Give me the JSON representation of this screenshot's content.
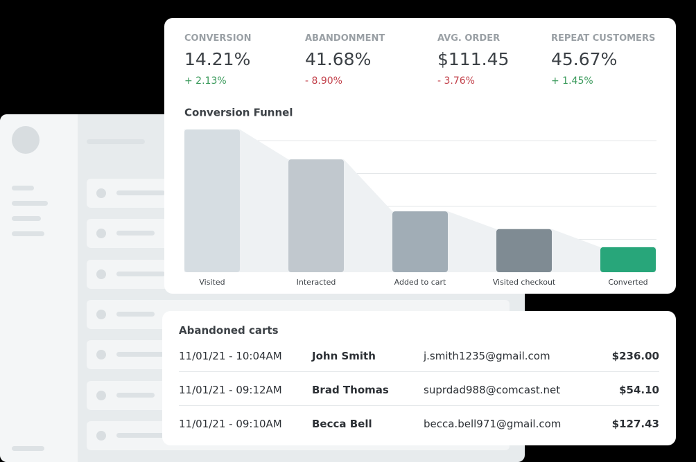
{
  "metrics": [
    {
      "label": "CONVERSION",
      "value": "14.21%",
      "change": "+ 2.13%",
      "trend": "up"
    },
    {
      "label": "ABANDONMENT",
      "value": "41.68%",
      "change": "- 8.90%",
      "trend": "down"
    },
    {
      "label": "AVG. ORDER",
      "value": "$111.45",
      "change": "- 3.76%",
      "trend": "down"
    },
    {
      "label": "REPEAT CUSTOMERS",
      "value": "45.67%",
      "change": "+ 1.45%",
      "trend": "up"
    }
  ],
  "chart_data": {
    "type": "bar",
    "title": "Conversion Funnel",
    "categories": [
      "Visited",
      "Interacted",
      "Added to cart",
      "Visited checkout",
      "Converted"
    ],
    "values": [
      4.34,
      3.43,
      1.85,
      1.31,
      0.76
    ],
    "colors": [
      "#d6dde2",
      "#c1c8ce",
      "#a1adb6",
      "#7f8b93",
      "#28a67a"
    ],
    "ylim": [
      0,
      4.4
    ],
    "yticks": [
      1,
      2,
      3,
      4
    ],
    "grid": true
  },
  "abandoned_carts": {
    "title": "Abandoned carts",
    "rows": [
      [
        "11/01/21 - 10:04AM",
        "John Smith",
        "j.smith1235@gmail.com",
        "$236.00"
      ],
      [
        "11/01/21 - 09:12AM",
        "Brad Thomas",
        "suprdad988@comcast.net",
        "$54.10"
      ],
      [
        "11/01/21 - 09:10AM",
        "Becca Bell",
        "becca.bell971@gmail.com",
        "$127.43"
      ]
    ]
  }
}
